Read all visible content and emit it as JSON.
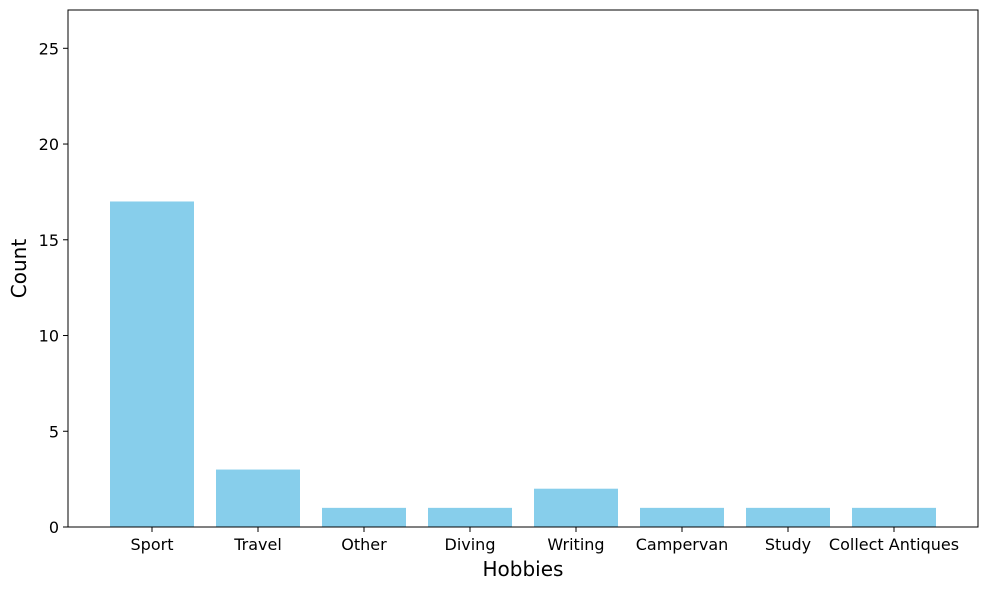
{
  "chart_data": {
    "type": "bar",
    "title": "",
    "xlabel": "Hobbies",
    "ylabel": "Count",
    "categories": [
      "Sport",
      "Travel",
      "Other",
      "Diving",
      "Writing",
      "Campervan",
      "Study",
      "Collect Antiques"
    ],
    "values": [
      17,
      3,
      1,
      1,
      2,
      1,
      1,
      1
    ],
    "ylim": [
      0,
      27
    ],
    "yticks": [
      0,
      5,
      10,
      15,
      20,
      25
    ],
    "bar_color": "#87CEEB",
    "grid": false,
    "legend": "none"
  }
}
